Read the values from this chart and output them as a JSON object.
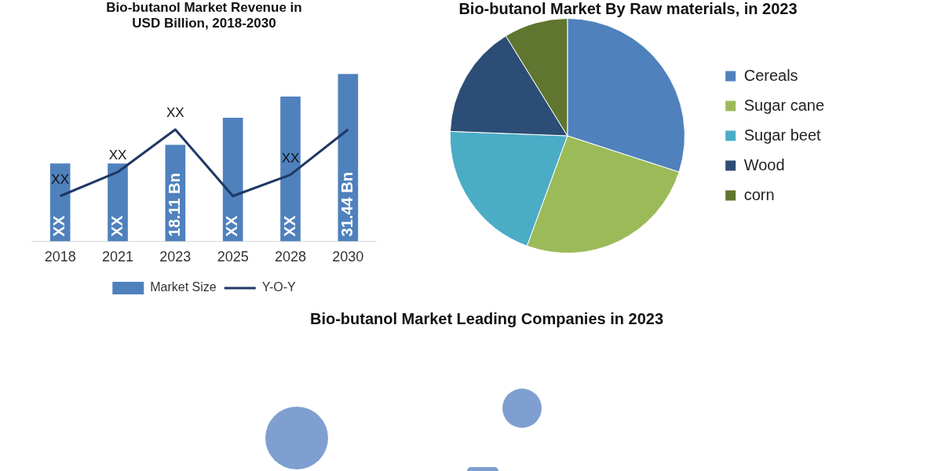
{
  "chart_data": [
    {
      "type": "bar",
      "title": "Bio-butanol Market Revenue in USD Billion, 2018-2030",
      "categories": [
        "2018",
        "2021",
        "2023",
        "2025",
        "2028",
        "2030"
      ],
      "legend": "bottom",
      "marker": "none",
      "series": [
        {
          "name": "Market Size",
          "type": "bar",
          "color": "#4f81bd",
          "values": [
            14.6,
            14.6,
            18.11,
            23.2,
            27.2,
            31.44
          ],
          "value_labels": [
            "XX",
            "XX",
            "18.11 Bn",
            "XX",
            "XX",
            "31.44 Bn"
          ]
        },
        {
          "name": "Y-O-Y",
          "type": "line",
          "color": "#1f3864",
          "values": [
            8.5,
            13,
            21,
            8.5,
            12.5,
            21
          ],
          "value_labels": [
            "XX",
            "XX",
            "XX",
            null,
            "XX",
            null
          ]
        }
      ]
    },
    {
      "type": "pie",
      "title": "Bio-butanol Market By Raw materials, in 2023",
      "categories": [
        "Cereals",
        "Sugar cane",
        "Sugar beet",
        "Wood",
        "corn"
      ],
      "values": [
        30,
        25.6,
        20,
        15.6,
        8.8
      ],
      "colors": [
        "#4f81bd",
        "#9bbb59",
        "#4bacc6",
        "#2c4d75",
        "#5f7530"
      ],
      "legend": "right"
    },
    {
      "type": "other",
      "title": "Bio-butanol Market Leading Companies in 2023"
    }
  ]
}
